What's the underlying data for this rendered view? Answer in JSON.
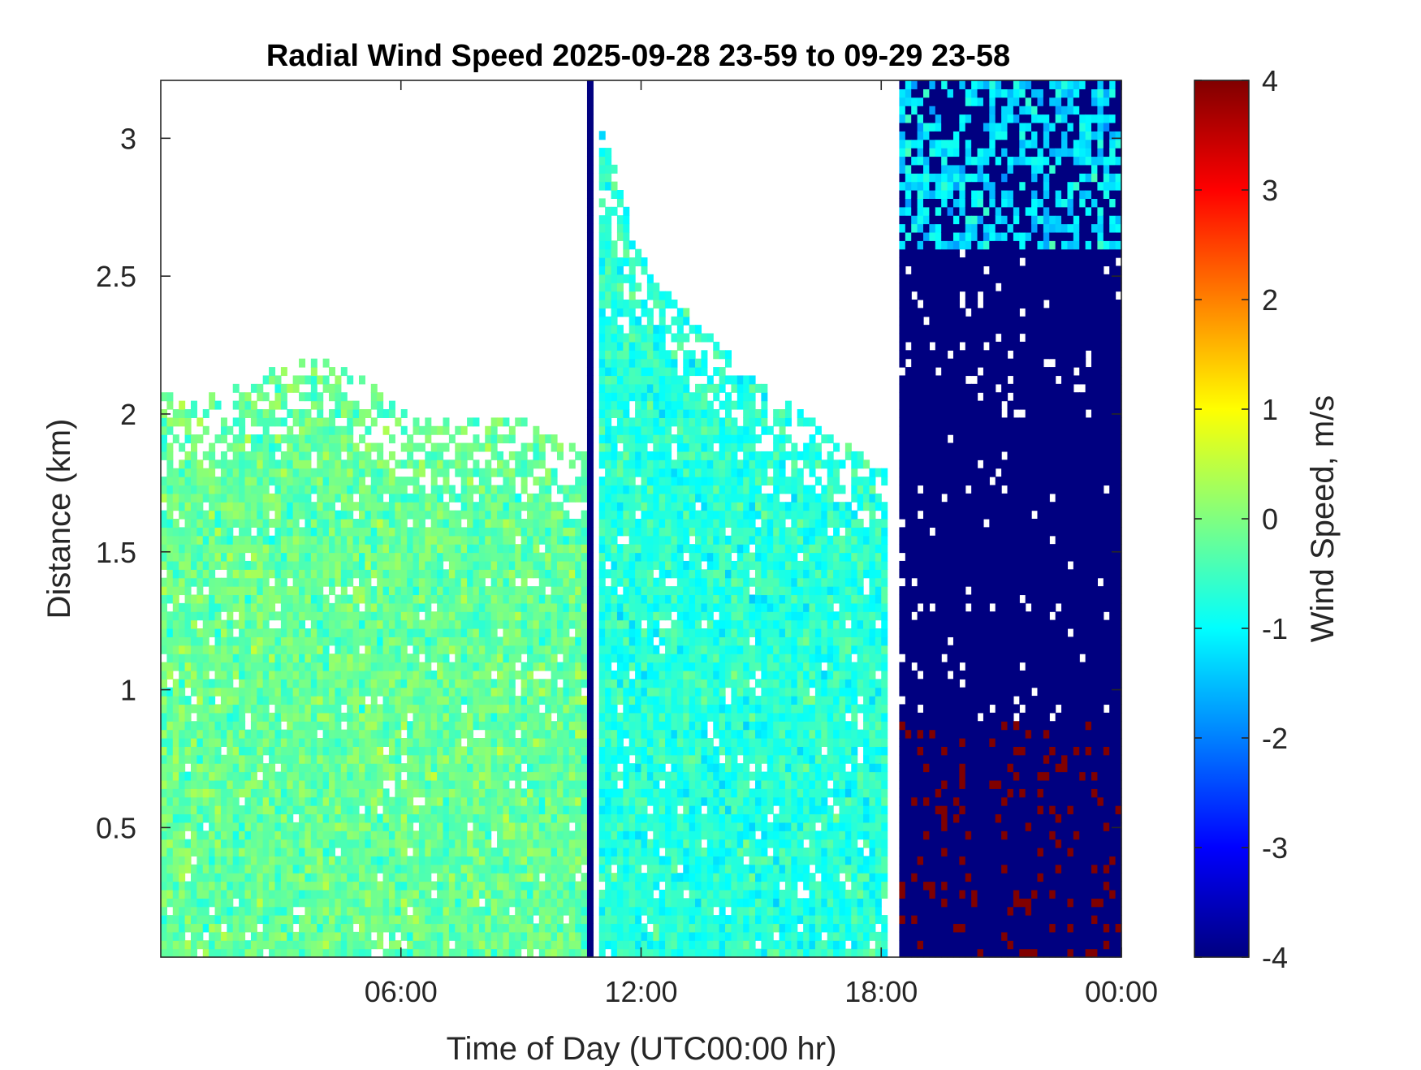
{
  "chart_data": {
    "type": "heatmap",
    "title": "Radial Wind Speed 2025-09-28 23-59 to 09-29 23-58",
    "xlabel": "Time of Day (UTC00:00 hr)",
    "ylabel": "Distance (km)",
    "x_range_hours": [
      0,
      24
    ],
    "xlim": [
      "00:00",
      "24:00"
    ],
    "x_ticks": [
      {
        "value_hours": 6,
        "label": "06:00"
      },
      {
        "value_hours": 12,
        "label": "12:00"
      },
      {
        "value_hours": 18,
        "label": "18:00"
      },
      {
        "value_hours": 24,
        "label": "00:00"
      }
    ],
    "ylim": [
      0.03,
      3.21
    ],
    "y_ticks": [
      {
        "value": 0.5,
        "label": "0.5"
      },
      {
        "value": 1,
        "label": "1"
      },
      {
        "value": 1.5,
        "label": "1.5"
      },
      {
        "value": 2,
        "label": "2"
      },
      {
        "value": 2.5,
        "label": "2.5"
      },
      {
        "value": 3,
        "label": "3"
      }
    ],
    "colorbar": {
      "label": "Wind Speed, m/s",
      "colormap": "jet",
      "range": [
        -4,
        4
      ],
      "ticks": [
        -4,
        -3,
        -2,
        -1,
        0,
        1,
        2,
        3,
        4
      ],
      "tick_labels": [
        "-4",
        "-3",
        "-2",
        "-1",
        "0",
        "1",
        "2",
        "3",
        "4"
      ]
    },
    "grid": false,
    "regions": [
      {
        "t_start": 0.0,
        "t_end": 10.6,
        "top_km": [
          2.07,
          2.05,
          2.12,
          2.18,
          2.2,
          2.1,
          1.98,
          1.97,
          2.0,
          1.95,
          1.85
        ],
        "speed_mean": -0.2,
        "speed_spread": 0.45,
        "note": "boundary layer aerosol returns, values near 0 m/s"
      },
      {
        "t_start": 10.55,
        "t_end": 10.75,
        "top_km": [
          3.21
        ],
        "speed_mean": -4,
        "speed_spread": 0,
        "note": "thin column saturated at -4 m/s"
      },
      {
        "t_start": 10.9,
        "t_end": 18.1,
        "top_km": [
          3.1,
          2.6,
          2.4,
          2.25,
          2.1,
          2.0,
          1.9,
          1.8
        ],
        "speed_mean": -0.7,
        "speed_spread": 0.45,
        "note": "decaying layer, slightly negative values"
      },
      {
        "t_start": 18.5,
        "t_end": 24.0,
        "top_km": [
          3.21
        ],
        "speed_mean": -4,
        "speed_spread": 0,
        "note": "mostly saturated at -4 m/s with cyan/blue at top and red streaks (+4 m/s) near ground"
      }
    ]
  }
}
